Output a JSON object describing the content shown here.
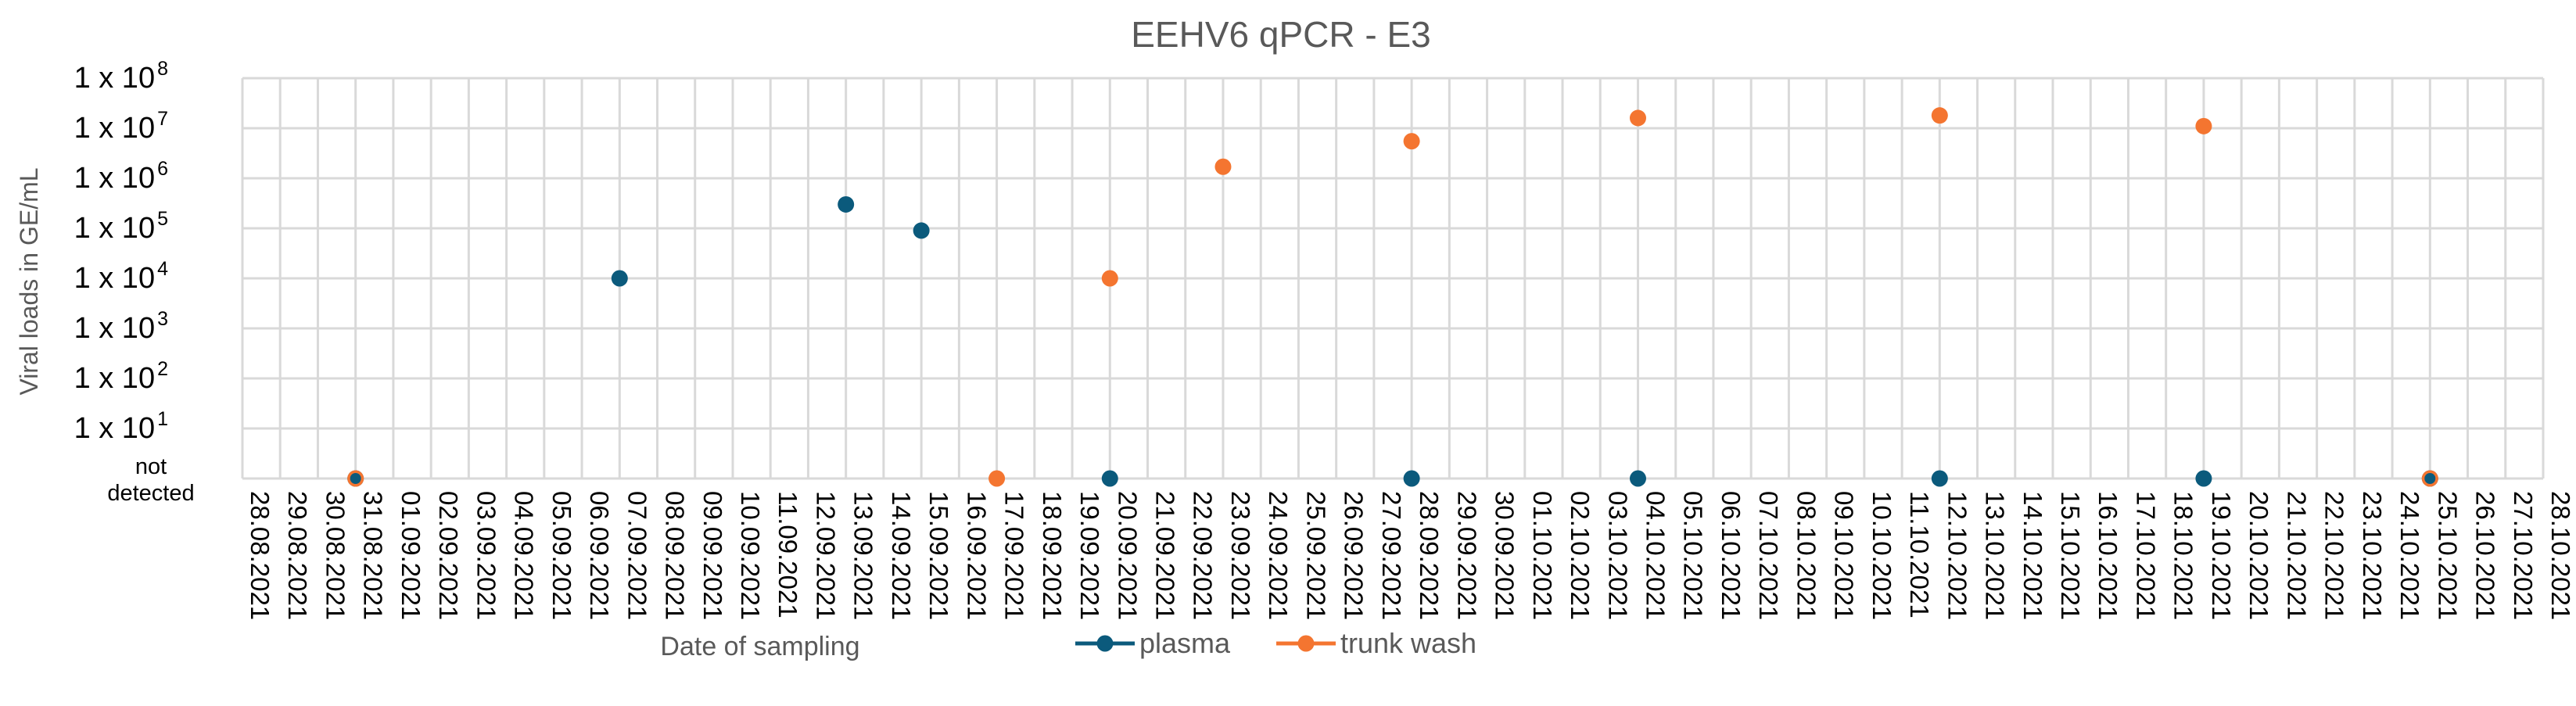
{
  "chart_data": {
    "type": "scatter",
    "title": "EEHV6 qPCR - E3",
    "xlabel": "Date of sampling",
    "ylabel": "Viral loads in GE/mL",
    "y_scale": "log",
    "y_ticks": [
      {
        "base": "1 x 10",
        "exp": "8"
      },
      {
        "base": "1 x 10",
        "exp": "7"
      },
      {
        "base": "1 x 10",
        "exp": "6"
      },
      {
        "base": "1 x 10",
        "exp": "5"
      },
      {
        "base": "1 x 10",
        "exp": "4"
      },
      {
        "base": "1 x 10",
        "exp": "3"
      },
      {
        "base": "1 x 10",
        "exp": "2"
      },
      {
        "base": "1 x 10",
        "exp": "1"
      }
    ],
    "not_detected_label": [
      "not",
      "detected"
    ],
    "x_ticks": [
      "28.08.2021",
      "29.08.2021",
      "30.08.2021",
      "31.08.2021",
      "01.09.2021",
      "02.09.2021",
      "03.09.2021",
      "04.09.2021",
      "05.09.2021",
      "06.09.2021",
      "07.09.2021",
      "08.09.2021",
      "09.09.2021",
      "10.09.2021",
      "11.09.2021",
      "12.09.2021",
      "13.09.2021",
      "14.09.2021",
      "15.09.2021",
      "16.09.2021",
      "17.09.2021",
      "18.09.2021",
      "19.09.2021",
      "20.09.2021",
      "21.09.2021",
      "22.09.2021",
      "23.09.2021",
      "24.09.2021",
      "25.09.2021",
      "26.09.2021",
      "27.09.2021",
      "28.09.2021",
      "29.09.2021",
      "30.09.2021",
      "01.10.2021",
      "02.10.2021",
      "03.10.2021",
      "04.10.2021",
      "05.10.2021",
      "06.10.2021",
      "07.10.2021",
      "08.10.2021",
      "09.10.2021",
      "10.10.2021",
      "11.10.2021",
      "12.10.2021",
      "13.10.2021",
      "14.10.2021",
      "15.10.2021",
      "16.10.2021",
      "17.10.2021",
      "18.10.2021",
      "19.10.2021",
      "20.10.2021",
      "21.10.2021",
      "22.10.2021",
      "23.10.2021",
      "24.10.2021",
      "25.10.2021",
      "26.10.2021",
      "27.10.2021",
      "28.10.2021"
    ],
    "series": [
      {
        "name": "plasma",
        "color": "#0b5a7c",
        "points": [
          {
            "x": "31.08.2021",
            "y": "not detected"
          },
          {
            "x": "07.09.2021",
            "y": 10000
          },
          {
            "x": "13.09.2021",
            "y": 300000
          },
          {
            "x": "15.09.2021",
            "y": 90000
          },
          {
            "x": "20.09.2021",
            "y": "not detected"
          },
          {
            "x": "28.09.2021",
            "y": "not detected"
          },
          {
            "x": "04.10.2021",
            "y": "not detected"
          },
          {
            "x": "12.10.2021",
            "y": "not detected"
          },
          {
            "x": "19.10.2021",
            "y": "not detected"
          },
          {
            "x": "25.10.2021",
            "y": "not detected"
          }
        ]
      },
      {
        "name": "trunk wash",
        "color": "#f47530",
        "points": [
          {
            "x": "31.08.2021",
            "y": "not detected"
          },
          {
            "x": "17.09.2021",
            "y": "not detected"
          },
          {
            "x": "20.09.2021",
            "y": 10000
          },
          {
            "x": "23.09.2021",
            "y": 1700000
          },
          {
            "x": "28.09.2021",
            "y": 5500000
          },
          {
            "x": "04.10.2021",
            "y": 16000000
          },
          {
            "x": "12.10.2021",
            "y": 18000000
          },
          {
            "x": "19.10.2021",
            "y": 11000000
          },
          {
            "x": "25.10.2021",
            "y": "not detected"
          }
        ]
      }
    ],
    "grid": true,
    "legend_position": "bottom"
  },
  "colors": {
    "grid": "#d9d9d9",
    "text": "#595959",
    "axis_text": "#000000"
  }
}
